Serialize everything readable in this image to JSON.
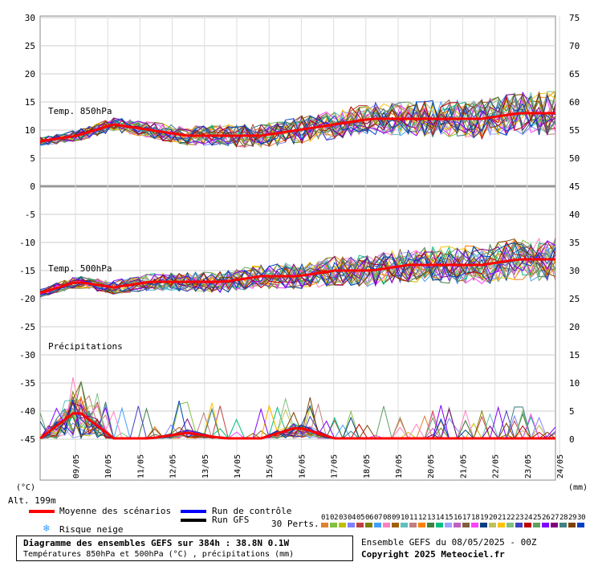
{
  "chart_data": {
    "type": "line",
    "x": [
      "09/05",
      "10/05",
      "11/05",
      "12/05",
      "13/05",
      "14/05",
      "15/05",
      "16/05",
      "17/05",
      "18/05",
      "19/05",
      "20/05",
      "21/05",
      "22/05",
      "23/05",
      "24/05"
    ],
    "left_axis": {
      "unit": "(°C)",
      "ticks": [
        "30",
        "25",
        "20",
        "15",
        "10",
        "5",
        "0",
        "-5",
        "-10",
        "-15",
        "-20",
        "-25",
        "-30",
        "-35",
        "-40",
        "-45"
      ]
    },
    "right_axis": {
      "unit": "(mm)",
      "ticks": [
        "75",
        "70",
        "65",
        "60",
        "55",
        "50",
        "45",
        "40",
        "35",
        "30",
        "25",
        "20",
        "15",
        "10",
        "5",
        "0"
      ]
    },
    "annotations": [
      "Temp. 850hPa",
      "Temp. 500hPa",
      "Précipitations"
    ],
    "series": [
      {
        "name": "Moyenne des scénarios",
        "color": "#ff0000",
        "t850": [
          8,
          9,
          11,
          10,
          9,
          9,
          9,
          10,
          11,
          12,
          12,
          12,
          12,
          13,
          13
        ],
        "t500": [
          -19,
          -17,
          -18,
          -17,
          -17,
          -17,
          -16,
          -16,
          -15,
          -15,
          -14,
          -14,
          -14,
          -13,
          -13
        ],
        "precip": [
          0,
          5,
          0,
          0,
          1,
          0,
          0,
          2,
          0,
          0,
          0,
          0,
          0,
          0,
          0
        ]
      },
      {
        "name": "Run de contrôle",
        "color": "#0000ff"
      },
      {
        "name": "Run GFS",
        "color": "#000000"
      }
    ]
  },
  "labels": {
    "alt": "Alt. 199m",
    "mean": "Moyenne des scénarios",
    "control": "Run de contrôle",
    "gfs": "Run GFS",
    "snow": "Risque neige",
    "perts": "30 Perts.",
    "pert_numbers": [
      "01",
      "02",
      "03",
      "04",
      "05",
      "06",
      "07",
      "08",
      "09",
      "10",
      "11",
      "12",
      "13",
      "14",
      "15",
      "16",
      "17",
      "18",
      "19",
      "20",
      "21",
      "22",
      "23",
      "24",
      "25",
      "26",
      "27",
      "28",
      "29",
      "30"
    ],
    "pert_colors": [
      "#e08030",
      "#80c040",
      "#c0c000",
      "#8080ff",
      "#c04040",
      "#808000",
      "#40a0ff",
      "#ff80c0",
      "#a06000",
      "#60c0c0",
      "#c08080",
      "#ff8000",
      "#408040",
      "#00c080",
      "#a0a0ff",
      "#c060c0",
      "#806040",
      "#ff40ff",
      "#004080",
      "#c0c060",
      "#ffc000",
      "#80c080",
      "#4040c0",
      "#c00000",
      "#60a060",
      "#8000ff",
      "#800080",
      "#408080",
      "#804000",
      "#0040c0"
    ],
    "title_line1": "Diagramme des ensembles GEFS sur 384h : 38.8N 0.1W",
    "title_line2": "Températures 850hPa et 500hPa (°C) , précipitations (mm)",
    "run": "Ensemble GEFS du 08/05/2025 - 00Z",
    "copyright": "Copyright 2025 Meteociel.fr"
  }
}
